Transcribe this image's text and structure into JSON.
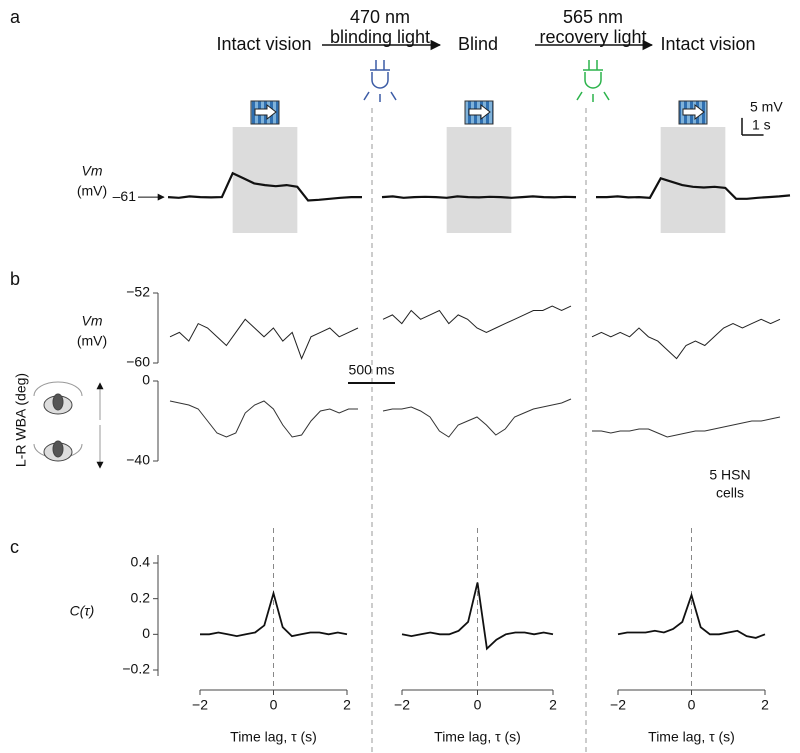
{
  "panel_labels": [
    "a",
    "b",
    "c"
  ],
  "protocol": {
    "conditions": [
      "Intact vision",
      "Blind",
      "Intact vision"
    ],
    "lights": [
      {
        "lines": [
          "470 nm",
          "blinding light"
        ],
        "color": "#3b5ba5"
      },
      {
        "lines": [
          "565 nm",
          "recovery light"
        ],
        "color": "#2bb34b"
      }
    ]
  },
  "scale_bars": {
    "a_voltage": {
      "value": 5,
      "label": "5 mV"
    },
    "a_time": {
      "value": 1,
      "label": "1 s"
    },
    "b_time": {
      "value": 500,
      "label": "500 ms"
    }
  },
  "cell_count": [
    "5 HSN",
    "cells"
  ],
  "chart_data": [
    {
      "type": "line",
      "y_label_var": "Vm",
      "y_label_unit": "(mV)",
      "color": "#111111",
      "xlim": [
        0,
        9
      ],
      "ylim": [
        -71.5,
        -40.5
      ],
      "yticks": [
        {
          "value": -61,
          "label": "–61"
        }
      ],
      "stimulus": [
        3,
        6
      ],
      "stimulus_color": "#dcdcdc",
      "x": [
        0,
        0.5,
        1,
        1.5,
        2,
        2.5,
        3,
        3.5,
        4,
        4.5,
        5,
        5.5,
        6,
        6.5,
        7,
        7.5,
        8,
        8.5,
        9
      ],
      "columns": [
        {
          "values": [
            -61,
            -61.2,
            -60.8,
            -61,
            -61.1,
            -61,
            -54,
            -55.5,
            -57,
            -57.5,
            -57.8,
            -57.5,
            -58,
            -62,
            -61.8,
            -61.5,
            -61.2,
            -61,
            -61
          ]
        },
        {
          "values": [
            -61,
            -60.8,
            -61.2,
            -61,
            -60.9,
            -61,
            -61.2,
            -60.8,
            -61,
            -61.1,
            -60.9,
            -61,
            -61.2,
            -61,
            -60.8,
            -61,
            -61.1,
            -60.9,
            -61
          ]
        },
        {
          "values": [
            -61,
            -61,
            -60.8,
            -61.1,
            -61,
            -61.2,
            -55.5,
            -56.5,
            -57.5,
            -58,
            -58.2,
            -58,
            -58.3,
            -61.5,
            -61.5,
            -61.2,
            -61,
            -60.8,
            -60.5
          ]
        }
      ]
    },
    {
      "type": "line",
      "y_label_var": "Vm",
      "y_label_unit": "(mV)",
      "color": "#222222",
      "xlim": [
        0,
        2000
      ],
      "ylim": [
        -60,
        -52
      ],
      "yticks": [
        {
          "value": -52,
          "label": "−52"
        },
        {
          "value": -60,
          "label": "−60"
        }
      ],
      "x": [
        0,
        100,
        200,
        300,
        400,
        500,
        600,
        700,
        800,
        900,
        1000,
        1100,
        1200,
        1300,
        1400,
        1500,
        1600,
        1700,
        1800,
        1900,
        2000
      ],
      "columns": [
        {
          "values": [
            -57,
            -56.5,
            -57.5,
            -55.5,
            -56,
            -57,
            -58,
            -56.5,
            -55,
            -56,
            -57,
            -56,
            -57.5,
            -56.5,
            -59.5,
            -57,
            -56.5,
            -56,
            -57,
            -56.5,
            -56
          ]
        },
        {
          "values": [
            -55,
            -54.5,
            -55.5,
            -54,
            -55,
            -54.5,
            -54,
            -55.5,
            -54.5,
            -55,
            -56,
            -56.5,
            -56,
            -55.5,
            -55,
            -54.5,
            -54,
            -54,
            -53.5,
            -54,
            -53.5
          ]
        },
        {
          "values": [
            -57,
            -56.5,
            -57,
            -56.5,
            -57,
            -56,
            -57,
            -57.5,
            -58.5,
            -59.5,
            -58,
            -57.5,
            -58,
            -57,
            -56,
            -55.5,
            -56,
            -55.5,
            -55,
            -55.5,
            -55
          ]
        }
      ]
    },
    {
      "type": "line",
      "y_label": "L-R WBA (deg)",
      "color": "#333333",
      "xlim": [
        0,
        2000
      ],
      "ylim": [
        -40,
        0
      ],
      "yticks": [
        0,
        {
          "value": -40,
          "label": "−40"
        }
      ],
      "x": [
        0,
        100,
        200,
        300,
        400,
        500,
        600,
        700,
        800,
        900,
        1000,
        1100,
        1200,
        1300,
        1400,
        1500,
        1600,
        1700,
        1800,
        1900,
        2000
      ],
      "columns": [
        {
          "values": [
            -10,
            -11,
            -12,
            -14,
            -20,
            -26,
            -28,
            -26,
            -16,
            -12,
            -10,
            -14,
            -22,
            -28,
            -27,
            -20,
            -15,
            -14,
            -16,
            -14,
            -14
          ]
        },
        {
          "values": [
            -15,
            -14,
            -14,
            -13,
            -15,
            -18,
            -25,
            -28,
            -22,
            -20,
            -18,
            -22,
            -27,
            -24,
            -18,
            -16,
            -14,
            -13,
            -12,
            -11,
            -9
          ]
        },
        {
          "values": [
            -25,
            -25,
            -26,
            -25,
            -25,
            -24,
            -24,
            -26,
            -28,
            -27,
            -26,
            -25,
            -25,
            -24,
            -23,
            -22,
            -21,
            -20,
            -20,
            -19,
            -18
          ]
        }
      ]
    },
    {
      "type": "line",
      "y_label": "C(τ)",
      "x_label": "Time lag, τ  (s)",
      "color": "#111111",
      "reference_x": 0,
      "xlim": [
        -2,
        2
      ],
      "xticks": [
        {
          "value": -2,
          "label": "−2"
        },
        0,
        2
      ],
      "ylim": [
        -0.2,
        0.4
      ],
      "yticks": [
        0.4,
        0.2,
        0,
        {
          "value": -0.2,
          "label": "−0.2"
        }
      ],
      "x": [
        -2,
        -1.75,
        -1.5,
        -1.25,
        -1,
        -0.75,
        -0.5,
        -0.25,
        0,
        0.25,
        0.5,
        0.75,
        1,
        1.25,
        1.5,
        1.75,
        2
      ],
      "columns": [
        {
          "values": [
            0,
            0,
            0.01,
            0,
            -0.01,
            0,
            0.01,
            0.05,
            0.23,
            0.04,
            -0.01,
            0,
            0.01,
            0.01,
            0,
            0.01,
            0
          ]
        },
        {
          "values": [
            0,
            -0.01,
            0,
            0.01,
            0,
            0,
            0.02,
            0.07,
            0.29,
            -0.08,
            -0.03,
            0,
            0.01,
            0.01,
            0,
            0.01,
            0
          ]
        },
        {
          "values": [
            0,
            0.01,
            0.01,
            0.01,
            0.02,
            0.01,
            0.03,
            0.07,
            0.22,
            0.04,
            0,
            0,
            0.01,
            0.02,
            -0.01,
            -0.02,
            0
          ]
        }
      ]
    }
  ]
}
